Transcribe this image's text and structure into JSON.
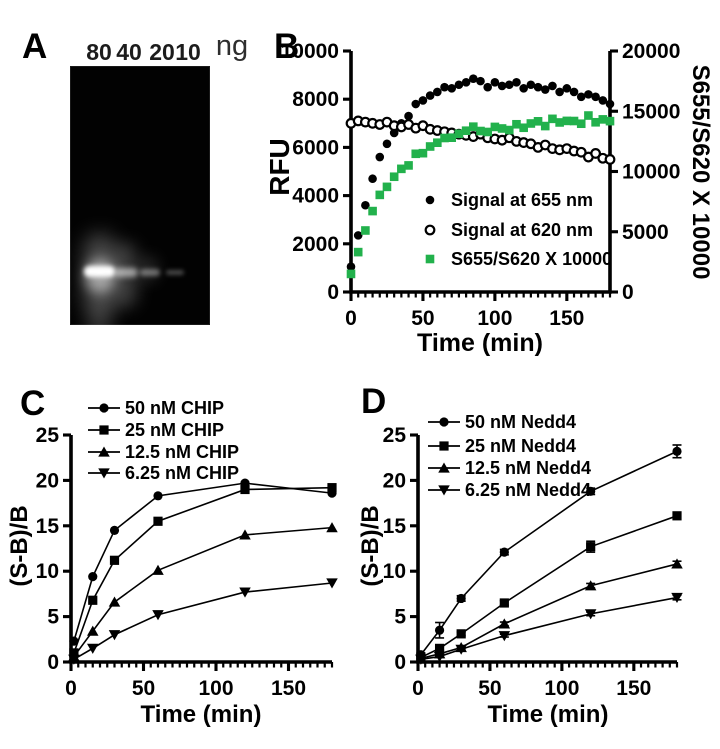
{
  "panel_a": {
    "label": "A",
    "unit": "ng",
    "lanes": [
      {
        "label": "80",
        "band_intensity": 1.0
      },
      {
        "label": "40",
        "band_intensity": 0.55
      },
      {
        "label": "20",
        "band_intensity": 0.38
      },
      {
        "label": "10",
        "band_intensity": 0.28
      }
    ]
  },
  "colors": {
    "black": "#000000",
    "green": "#22b14c",
    "background": "#ffffff"
  },
  "chart_data": [
    {
      "panel_letter": "B",
      "type": "scatter",
      "x_label": "Time (min)",
      "y_label": "RFU",
      "y_right_label": "S655/S620 X 10000",
      "x_range": [
        0,
        180
      ],
      "x_major_ticks": [
        0,
        50,
        100,
        150
      ],
      "x_minor_step": 5,
      "y_range": [
        0,
        10000
      ],
      "y_ticks": [
        0,
        2000,
        4000,
        6000,
        8000,
        10000
      ],
      "y_right_range": [
        0,
        20000
      ],
      "y_right_ticks": [
        0,
        5000,
        10000,
        15000,
        20000
      ],
      "legend_position": "inside-center",
      "grid": false,
      "x": [
        0,
        5,
        10,
        15,
        20,
        25,
        30,
        35,
        40,
        45,
        50,
        55,
        60,
        65,
        70,
        75,
        80,
        85,
        90,
        95,
        100,
        105,
        110,
        115,
        120,
        125,
        130,
        135,
        140,
        145,
        150,
        155,
        160,
        165,
        170,
        175,
        180
      ],
      "series": [
        {
          "name": "Signal at 655 nm",
          "marker": "circle",
          "color": "#000000",
          "axis": "left",
          "values": [
            1050,
            2350,
            3600,
            4700,
            5600,
            6150,
            6600,
            7000,
            7300,
            7800,
            7950,
            8150,
            8300,
            8500,
            8450,
            8600,
            8700,
            8850,
            8750,
            8500,
            8700,
            8550,
            8600,
            8700,
            8450,
            8600,
            8500,
            8400,
            8550,
            8300,
            8450,
            8300,
            8100,
            8200,
            8100,
            7950,
            7800
          ]
        },
        {
          "name": "Signal at 620 nm",
          "marker": "circle-open",
          "color": "#000000",
          "axis": "left",
          "values": [
            7000,
            7100,
            7050,
            7000,
            6950,
            7050,
            6900,
            6850,
            6950,
            6800,
            6900,
            6750,
            6700,
            6650,
            6600,
            6550,
            6500,
            6450,
            6550,
            6400,
            6350,
            6300,
            6400,
            6250,
            6200,
            6150,
            6000,
            6100,
            5950,
            5900,
            5950,
            5850,
            5800,
            5600,
            5750,
            5550,
            5500
          ]
        },
        {
          "name": "S655/S620 X 10000",
          "marker": "square",
          "color": "#22b14c",
          "axis": "right",
          "values": [
            1500,
            3310,
            5105,
            6715,
            8060,
            8725,
            9565,
            10220,
            10505,
            11470,
            11520,
            12075,
            12390,
            12780,
            12805,
            13130,
            13385,
            13720,
            13360,
            13280,
            13700,
            13570,
            13440,
            13920,
            13630,
            13985,
            14165,
            13770,
            14370,
            14070,
            14200,
            14190,
            13965,
            14645,
            14085,
            14325,
            14180
          ]
        }
      ]
    },
    {
      "panel_letter": "C",
      "type": "line",
      "x_label": "Time (min)",
      "y_label": "(S-B)/B",
      "x_range": [
        0,
        180
      ],
      "x_major_ticks": [
        0,
        50,
        100,
        150
      ],
      "x_minor_step": 5,
      "y_range": [
        0,
        25
      ],
      "y_ticks": [
        0,
        5,
        10,
        15,
        20,
        25
      ],
      "legend_position": "top-left",
      "grid": false,
      "x": [
        2,
        15,
        30,
        60,
        120,
        180
      ],
      "series": [
        {
          "name": "50 nM CHIP",
          "marker": "circle",
          "color": "#000000",
          "values": [
            2.3,
            9.4,
            14.5,
            18.3,
            19.7,
            18.6
          ]
        },
        {
          "name": "25 nM CHIP",
          "marker": "square",
          "color": "#000000",
          "values": [
            1.0,
            6.8,
            11.2,
            15.5,
            19.0,
            19.2
          ]
        },
        {
          "name": "12.5 nM CHIP",
          "marker": "triangle-up",
          "color": "#000000",
          "values": [
            0.6,
            3.4,
            6.6,
            10.1,
            14.0,
            14.8
          ]
        },
        {
          "name": "6.25 nM CHIP",
          "marker": "triangle-down",
          "color": "#000000",
          "values": [
            0.3,
            1.5,
            3.0,
            5.2,
            7.7,
            8.7
          ]
        }
      ]
    },
    {
      "panel_letter": "D",
      "type": "line",
      "x_label": "Time (min)",
      "y_label": "(S-B)/B",
      "x_range": [
        0,
        180
      ],
      "x_major_ticks": [
        0,
        50,
        100,
        150
      ],
      "x_minor_step": 5,
      "y_range": [
        0,
        25
      ],
      "y_ticks": [
        0,
        5,
        10,
        15,
        20,
        25
      ],
      "legend_position": "top-left",
      "grid": false,
      "x": [
        2,
        15,
        30,
        60,
        120,
        180
      ],
      "series": [
        {
          "name": "50 nM Nedd4",
          "marker": "circle",
          "color": "#000000",
          "values": [
            0.8,
            3.5,
            7.0,
            12.1,
            18.8,
            23.2
          ],
          "errors": [
            0.2,
            0.85,
            0.3,
            0.3,
            0.35,
            0.7
          ]
        },
        {
          "name": "25 nM Nedd4",
          "marker": "square",
          "color": "#000000",
          "values": [
            0.5,
            1.5,
            3.1,
            6.5,
            12.7,
            16.1
          ],
          "errors": [
            0.15,
            0.2,
            0.2,
            0.25,
            0.6,
            0.35
          ]
        },
        {
          "name": "12.5 nM Nedd4",
          "marker": "triangle-up",
          "color": "#000000",
          "values": [
            0.4,
            0.9,
            1.6,
            4.2,
            8.4,
            10.8
          ],
          "errors": [
            0.1,
            0.15,
            0.15,
            0.2,
            0.25,
            0.3
          ]
        },
        {
          "name": "6.25 nM Nedd4",
          "marker": "triangle-down",
          "color": "#000000",
          "values": [
            0.3,
            0.6,
            1.4,
            2.9,
            5.3,
            7.1
          ],
          "errors": [
            0.1,
            0.1,
            0.15,
            0.15,
            0.2,
            0.25
          ]
        }
      ]
    }
  ]
}
